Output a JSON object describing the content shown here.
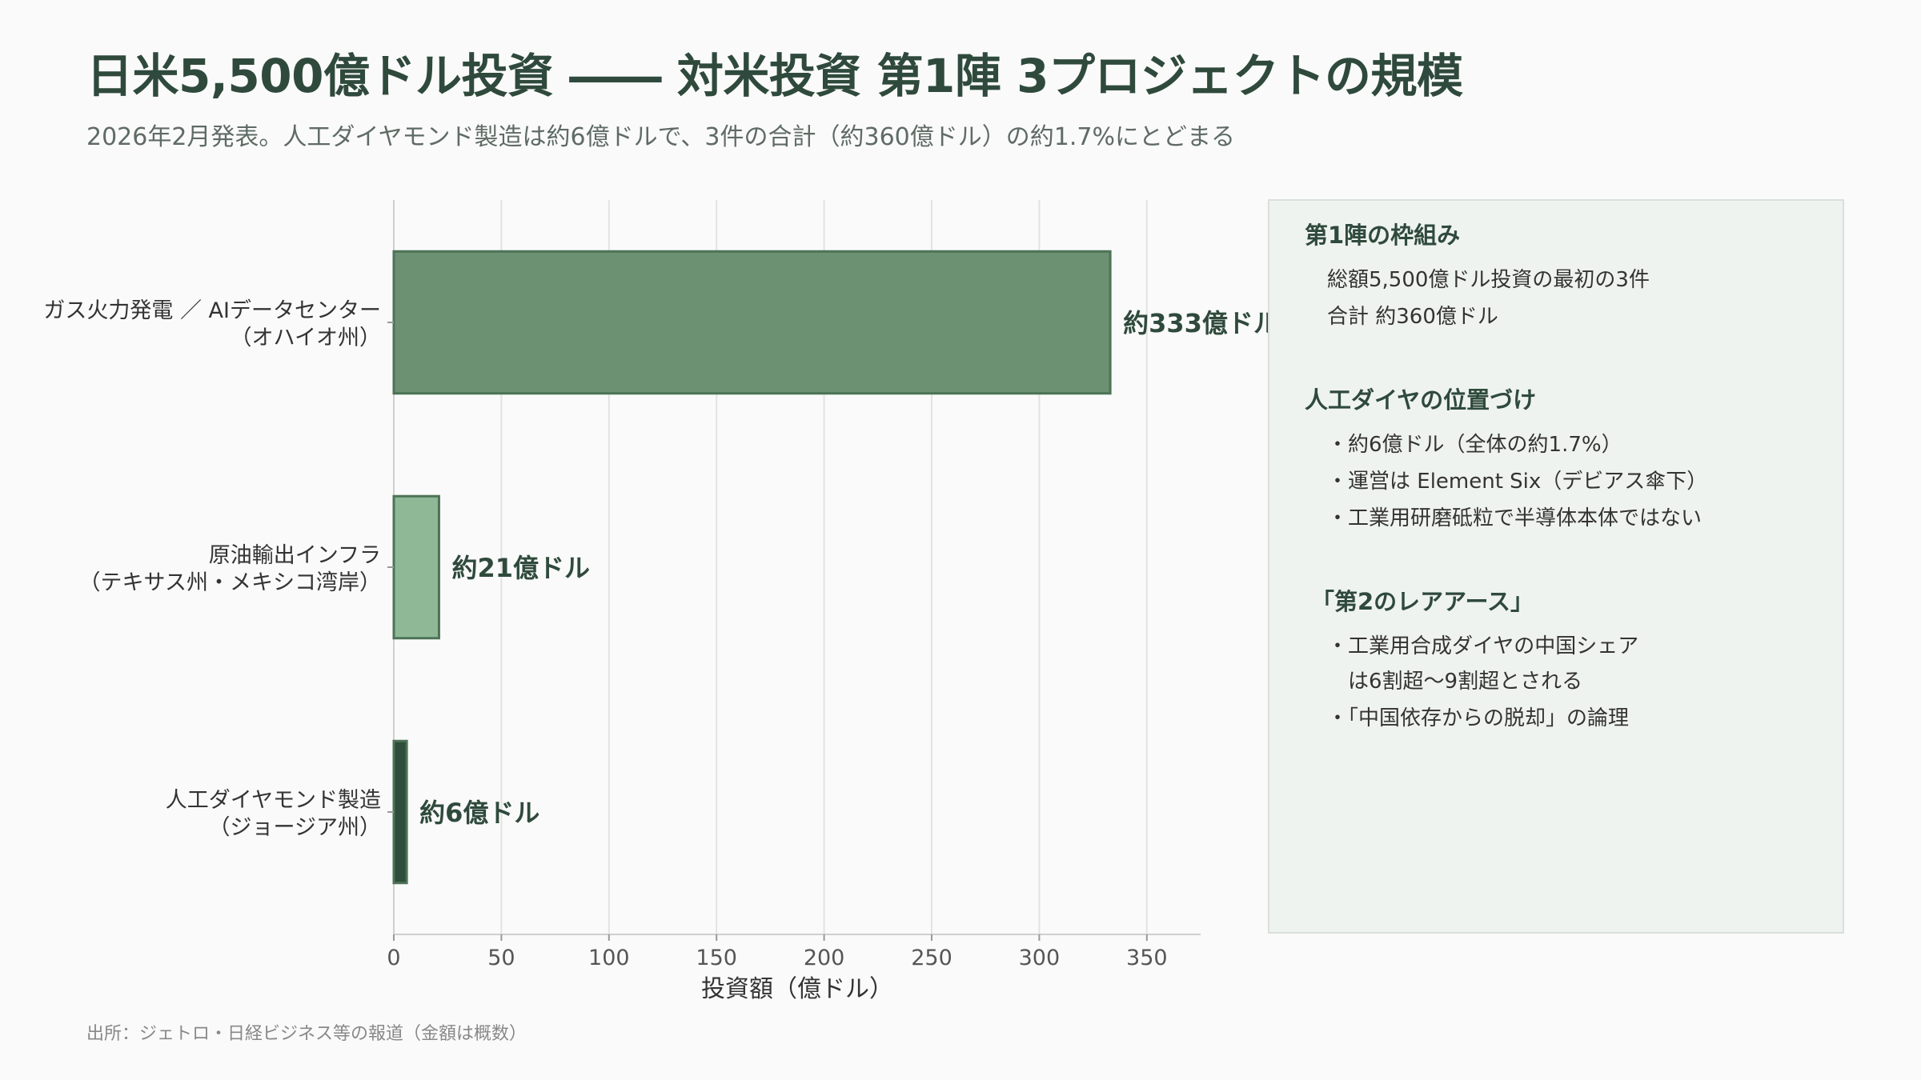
{
  "header": {
    "title": "日米5,500億ドル投資 ―― 対米投資 第1陣 3プロジェクトの規模",
    "subtitle": "2026年2月発表。人工ダイヤモンド製造は約6億ドルで、3件の合計（約360億ドル）の約1.7%にとどまる"
  },
  "chart_data": {
    "type": "bar",
    "orientation": "horizontal",
    "categories": [
      [
        "ガス火力発電 ／ AIデータセンター",
        "（オハイオ州）"
      ],
      [
        "原油輸出インフラ",
        "（テキサス州・メキシコ湾岸）"
      ],
      [
        "人工ダイヤモンド製造",
        "（ジョージア州）"
      ]
    ],
    "values": [
      333,
      21,
      6
    ],
    "value_labels": [
      "約333億ドル",
      "約21億ドル",
      "約6億ドル"
    ],
    "colors": [
      "#6b9072",
      "#8fb996",
      "#2e4d3a"
    ],
    "edge_color": "#4c7356",
    "xlabel": "投資額（億ドル）",
    "xlim": [
      0,
      375
    ],
    "xticks": [
      0,
      50,
      100,
      150,
      200,
      250,
      300,
      350
    ],
    "grid": "vertical"
  },
  "panel": {
    "sections": [
      {
        "title": "第1陣の枠組み",
        "lines": [
          "総額5,500億ドル投資の最初の3件",
          "合計 約360億ドル"
        ]
      },
      {
        "title": "人工ダイヤの位置づけ",
        "lines": [
          "・約6億ドル（全体の約1.7%）",
          "・運営は Element Six（デビアス傘下）",
          "・工業用研磨砥粒で半導体本体ではない"
        ]
      },
      {
        "title": "「第2のレアアース」",
        "lines": [
          "・工業用合成ダイヤの中国シェア",
          "　は6割超〜9割超とされる",
          "・「中国依存からの脱却」の論理"
        ]
      }
    ]
  },
  "footer": {
    "source": "出所：ジェトロ・日経ビジネス等の報道（金額は概数）"
  }
}
